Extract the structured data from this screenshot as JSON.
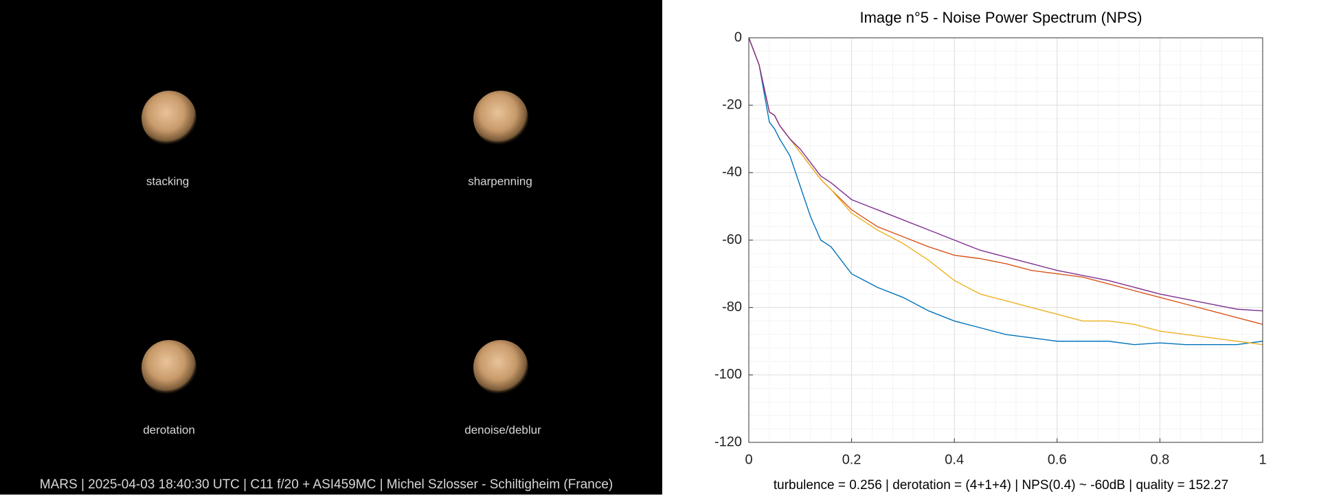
{
  "panels": [
    {
      "label": "stacking"
    },
    {
      "label": "sharpenning"
    },
    {
      "label": "derotation"
    },
    {
      "label": "denoise/deblur"
    }
  ],
  "caption": "MARS | 2025-04-03  18:40:30 UTC | C11 f/20 + ASI459MC | Michel Szlosser - Schiltigheim (France)",
  "chart_data": {
    "type": "line",
    "title": "Image n°5 - Noise Power Spectrum (NPS)",
    "annotation": "turbulence = 0.256 | derotation = (4+1+4) | NPS(0.4) ~ -60dB |  quality = 152.27",
    "x": [
      0,
      0.02,
      0.04,
      0.05,
      0.06,
      0.08,
      0.1,
      0.12,
      0.14,
      0.16,
      0.2,
      0.25,
      0.3,
      0.35,
      0.4,
      0.45,
      0.5,
      0.55,
      0.6,
      0.65,
      0.7,
      0.75,
      0.8,
      0.85,
      0.9,
      0.95,
      1
    ],
    "series": [
      {
        "color": "#0072bd",
        "values": [
          0,
          -8,
          -25,
          -27,
          -30,
          -35,
          -44,
          -53,
          -60,
          -62,
          -70,
          -74,
          -77,
          -81,
          -84,
          -86,
          -88,
          -89,
          -90,
          -90,
          -90,
          -91,
          -90.5,
          -91,
          -91,
          -91,
          -90
        ]
      },
      {
        "color": "#d95319",
        "values": [
          0,
          -8,
          -22,
          -23,
          -26,
          -30,
          -34,
          -38,
          -42,
          -45,
          -51,
          -56,
          -59,
          -62,
          -64.5,
          -65.5,
          -67,
          -69,
          -70,
          -71,
          -73,
          -75,
          -77,
          -79,
          -81,
          -83,
          -85
        ]
      },
      {
        "color": "#edb120",
        "values": [
          0,
          -8,
          -22,
          -23,
          -26,
          -30,
          -34,
          -38,
          -42,
          -45,
          -52,
          -57,
          -61,
          -66,
          -72,
          -76,
          -78,
          -80,
          -82,
          -84,
          -84,
          -85,
          -87,
          -88,
          -89,
          -90,
          -91
        ]
      },
      {
        "color": "#7e2f8e",
        "values": [
          0,
          -8,
          -22,
          -23,
          -26,
          -30,
          -33,
          -37,
          -41,
          -43,
          -48,
          -51,
          -54,
          -57,
          -60,
          -63,
          -65,
          -67,
          -69,
          -70.5,
          -72,
          -74,
          -76,
          -77.5,
          -79,
          -80.5,
          -81
        ]
      }
    ],
    "xlim": [
      0,
      1
    ],
    "ylim": [
      -120,
      0
    ],
    "xticks": [
      0,
      0.2,
      0.4,
      0.6,
      0.8,
      1
    ],
    "yticks": [
      -120,
      -100,
      -80,
      -60,
      -40,
      -20,
      0
    ],
    "grid": true,
    "minor_grid": true
  }
}
